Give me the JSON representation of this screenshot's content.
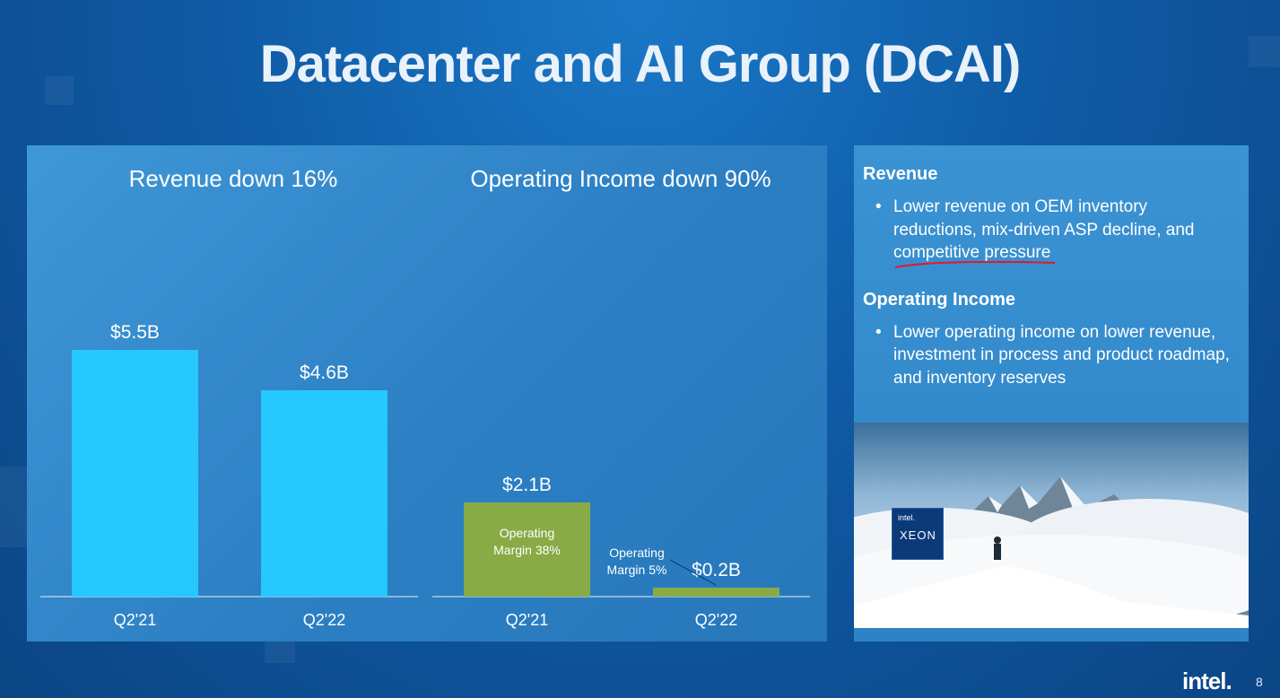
{
  "title": "Datacenter and AI Group (DCAI)",
  "chart_data": [
    {
      "type": "bar",
      "title": "Revenue down 16%",
      "categories": [
        "Q2'21",
        "Q2'22"
      ],
      "values": [
        5.5,
        4.6
      ],
      "value_labels": [
        "$5.5B",
        "$4.6B"
      ],
      "unit": "$B",
      "color": "#25c8ff",
      "grid": false
    },
    {
      "type": "bar",
      "title": "Operating Income down 90%",
      "categories": [
        "Q2'21",
        "Q2'22"
      ],
      "values": [
        2.1,
        0.2
      ],
      "value_labels": [
        "$2.1B",
        "$0.2B"
      ],
      "unit": "$B",
      "color": "#88ab46",
      "annotations": [
        {
          "line1": "Operating",
          "line2": "Margin 38%"
        },
        {
          "line1": "Operating",
          "line2": "Margin 5%"
        }
      ],
      "grid": false
    }
  ],
  "side": {
    "revenue_heading": "Revenue",
    "revenue_bullet_pre": "Lower revenue on OEM inventory reductions, mix-driven ASP decline, and ",
    "revenue_bullet_underlined": "competitive pressure",
    "opinc_heading": "Operating Income",
    "opinc_bullet": "Lower operating income on lower revenue, investment in process and product roadmap, and inventory reserves",
    "badge_brand": "intel.",
    "badge_product": "XEON"
  },
  "footer": {
    "logo": "intel.",
    "page": "8"
  },
  "colors": {
    "revenue_bar": "#25c8ff",
    "opinc_bar": "#88ab46",
    "underline": "#e0192b"
  }
}
